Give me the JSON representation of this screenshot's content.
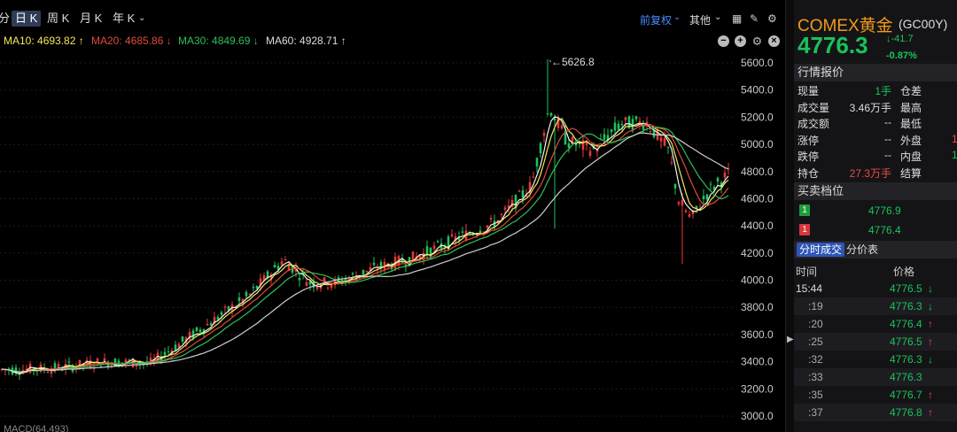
{
  "toolbar": {
    "periods": [
      "分",
      "日 K",
      "周 K",
      "月 K",
      "年 K"
    ],
    "active_period": "日 K",
    "adjust": "前复权",
    "other": "其他"
  },
  "ma": {
    "ma10": "MA10: 4693.82 ↑",
    "ma20": "MA20: 4685.86 ↓",
    "ma30": "MA30: 4849.69 ↓",
    "ma60": "MA60: 4928.71 ↑"
  },
  "chart_labels": {
    "peak": "←5626.8",
    "y_ticks": [
      "5600.0",
      "5400.0",
      "5200.0",
      "5000.0",
      "4800.0",
      "4600.0",
      "4400.0",
      "4200.0",
      "4000.0",
      "3800.0",
      "3600.0",
      "3400.0",
      "3200.0",
      "3000.0"
    ],
    "macd": "MACD(64,493)"
  },
  "quote": {
    "name": "COMEX黄金",
    "code": "(GC00Y)",
    "price": "4776.3",
    "change": "-41.7",
    "pct": "-0.87%"
  },
  "section_titles": {
    "market": "行情报价",
    "book": "买卖档位"
  },
  "quote_table": [
    {
      "l1": "现量",
      "v1": "1手",
      "l2": "仓差",
      "v2": ""
    },
    {
      "l1": "成交量",
      "v1": "3.46万手",
      "l2": "最高",
      "v2": ""
    },
    {
      "l1": "成交额",
      "v1": "--",
      "l2": "最低",
      "v2": ""
    },
    {
      "l1": "涨停",
      "v1": "--",
      "l2": "外盘",
      "v2": "1"
    },
    {
      "l1": "跌停",
      "v1": "--",
      "l2": "内盘",
      "v2": "1"
    },
    {
      "l1": "持仓",
      "v1": "27.3万手",
      "l2": "结算",
      "v2": ""
    }
  ],
  "order_book": [
    {
      "level": "1",
      "price": "4776.9",
      "color": "#1e9d3e"
    },
    {
      "level": "1",
      "price": "4776.4",
      "color": "#d9363a"
    }
  ],
  "tick_tabs": [
    "分时成交",
    "分价表"
  ],
  "tick_header": {
    "time": "时间",
    "price": "价格"
  },
  "ticks": [
    {
      "time": "15:44",
      "price": "4776.5",
      "dir": "down"
    },
    {
      "time": ":19",
      "price": "4776.3",
      "dir": "down"
    },
    {
      "time": ":20",
      "price": "4776.4",
      "dir": "up"
    },
    {
      "time": ":25",
      "price": "4776.5",
      "dir": "up"
    },
    {
      "time": ":32",
      "price": "4776.3",
      "dir": "down"
    },
    {
      "time": ":33",
      "price": "4776.3",
      "dir": ""
    },
    {
      "time": ":35",
      "price": "4776.7",
      "dir": "up"
    },
    {
      "time": ":37",
      "price": "4776.8",
      "dir": "up"
    }
  ]
}
